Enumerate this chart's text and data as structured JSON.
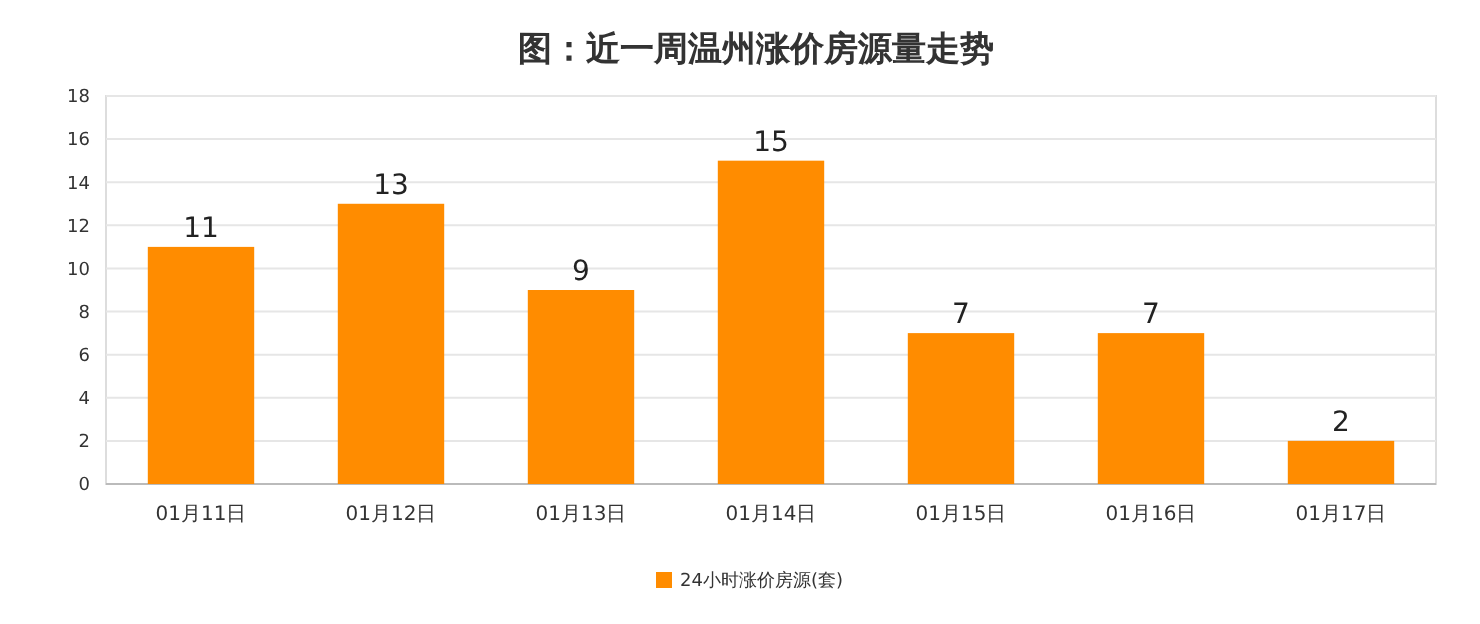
{
  "chart_data": {
    "type": "bar",
    "title": "图：近一周温州涨价房源量走势",
    "categories": [
      "01月11日",
      "01月12日",
      "01月13日",
      "01月14日",
      "01月15日",
      "01月16日",
      "01月17日"
    ],
    "series": [
      {
        "name": "24小时涨价房源(套)",
        "color": "#ff8c00",
        "values": [
          11,
          13,
          9,
          15,
          7,
          7,
          2
        ]
      }
    ],
    "ylim": [
      0,
      18
    ],
    "yticks": [
      0,
      2,
      4,
      6,
      8,
      10,
      12,
      14,
      16,
      18
    ],
    "grid": "y",
    "legend": "bottom",
    "data_labels": true
  }
}
